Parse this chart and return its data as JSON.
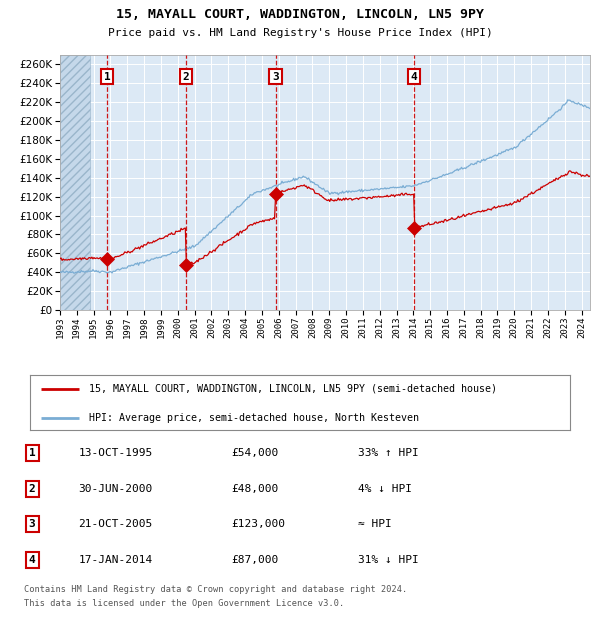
{
  "title": "15, MAYALL COURT, WADDINGTON, LINCOLN, LN5 9PY",
  "subtitle": "Price paid vs. HM Land Registry's House Price Index (HPI)",
  "ylim": [
    0,
    270000
  ],
  "yticks": [
    0,
    20000,
    40000,
    60000,
    80000,
    100000,
    120000,
    140000,
    160000,
    180000,
    200000,
    220000,
    240000,
    260000
  ],
  "background_color": "#dce9f5",
  "grid_color": "#ffffff",
  "red_line_color": "#cc0000",
  "blue_line_color": "#7aadd4",
  "vline_color": "#cc0000",
  "sale_dates": [
    1995.79,
    2000.5,
    2005.81,
    2014.04
  ],
  "sale_prices": [
    54000,
    48000,
    123000,
    87000
  ],
  "sale_labels": [
    "1",
    "2",
    "3",
    "4"
  ],
  "legend_entries": [
    "15, MAYALL COURT, WADDINGTON, LINCOLN, LN5 9PY (semi-detached house)",
    "HPI: Average price, semi-detached house, North Kesteven"
  ],
  "table_rows": [
    [
      "1",
      "13-OCT-1995",
      "£54,000",
      "33% ↑ HPI"
    ],
    [
      "2",
      "30-JUN-2000",
      "£48,000",
      "4% ↓ HPI"
    ],
    [
      "3",
      "21-OCT-2005",
      "£123,000",
      "≈ HPI"
    ],
    [
      "4",
      "17-JAN-2014",
      "£87,000",
      "31% ↓ HPI"
    ]
  ],
  "footer": [
    "Contains HM Land Registry data © Crown copyright and database right 2024.",
    "This data is licensed under the Open Government Licence v3.0."
  ]
}
